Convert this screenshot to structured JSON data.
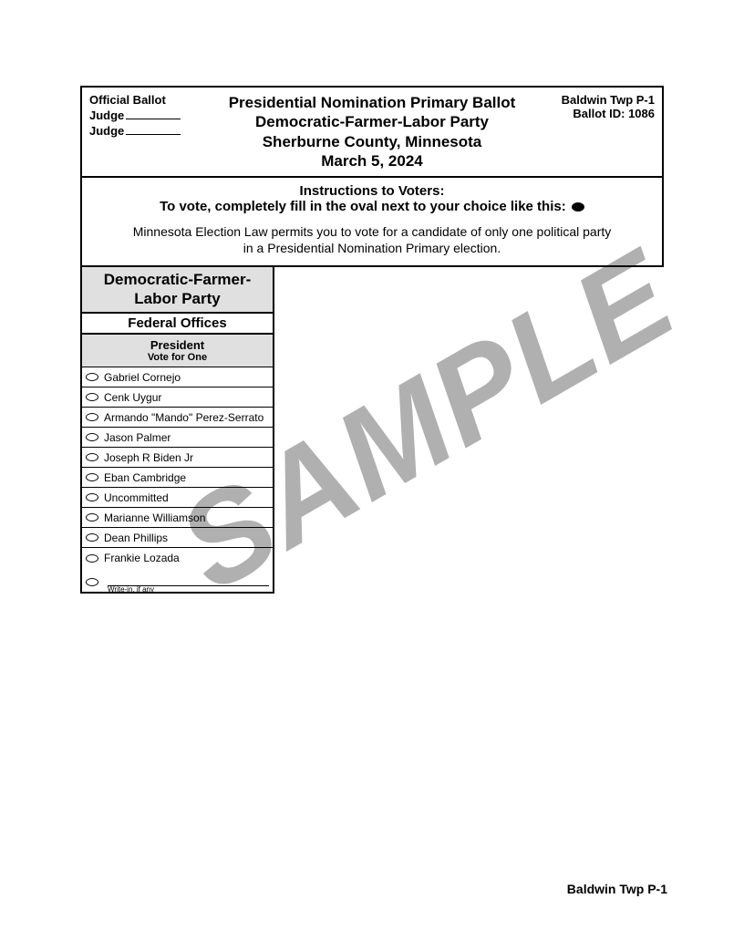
{
  "watermark": "SAMPLE",
  "header": {
    "official_ballot": "Official Ballot",
    "judge_label": "Judge",
    "title_lines": [
      "Presidential Nomination Primary Ballot",
      "Democratic-Farmer-Labor Party",
      "Sherburne County, Minnesota",
      "March 5, 2024"
    ],
    "precinct": "Baldwin Twp P-1",
    "ballot_id_label": "Ballot ID: 1086"
  },
  "instructions": {
    "title": "Instructions to Voters:",
    "fill_line": "To vote, completely fill in the oval next to your choice like this:",
    "body_line1": "Minnesota Election Law permits you to vote for a candidate of only one political party",
    "body_line2": "in a Presidential Nomination Primary election."
  },
  "contest": {
    "party_line1": "Democratic-Farmer-",
    "party_line2": "Labor Party",
    "office_section": "Federal Offices",
    "contest_title": "President",
    "vote_for": "Vote for One",
    "candidates": [
      "Gabriel Cornejo",
      "Cenk Uygur",
      "Armando \"Mando\" Perez-Serrato",
      "Jason Palmer",
      "Joseph R Biden Jr",
      "Eban Cambridge",
      "Uncommitted",
      "Marianne Williamson",
      "Dean Phillips",
      "Frankie Lozada"
    ],
    "writein_label": "Write-in, if any"
  },
  "footer": {
    "precinct": "Baldwin Twp P-1"
  },
  "colors": {
    "background": "#ffffff",
    "border": "#000000",
    "shaded": "#e0e0e0",
    "watermark": "#b0b0b0"
  }
}
